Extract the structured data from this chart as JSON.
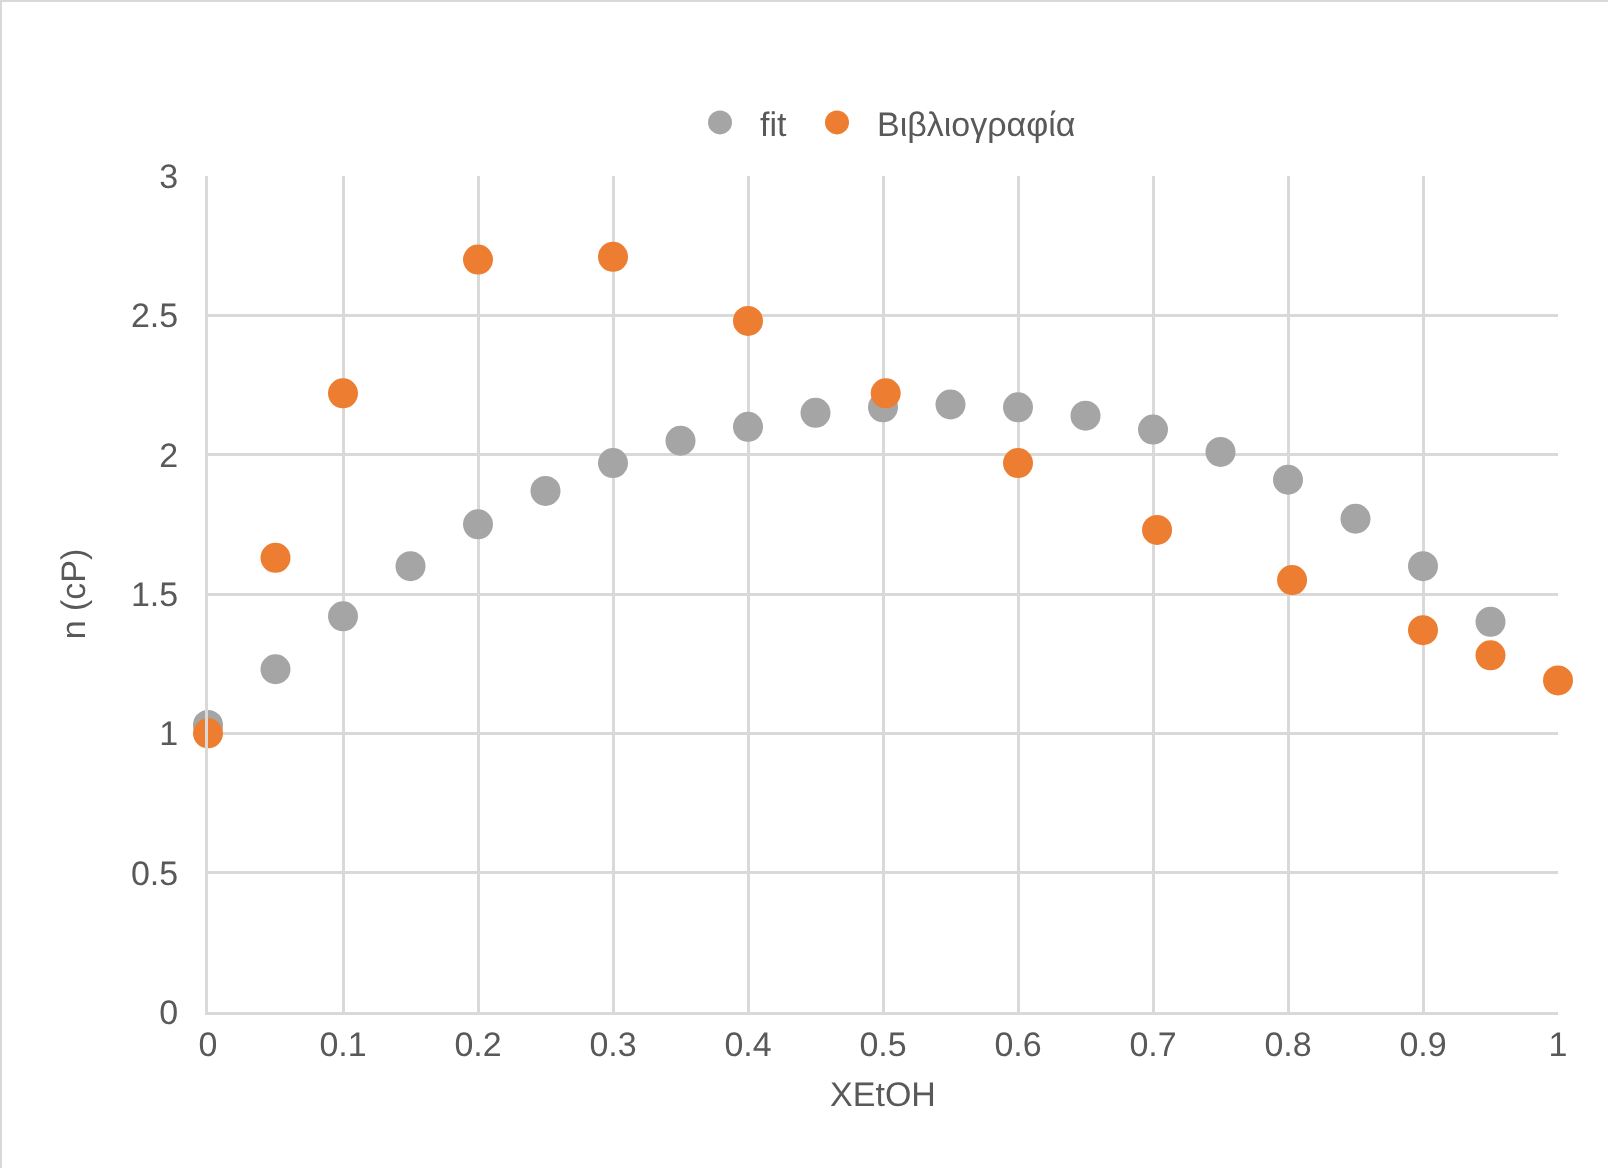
{
  "chart_data": {
    "type": "scatter",
    "xlabel": "XEtOH",
    "ylabel": "n (cP)",
    "xlim": [
      0,
      1
    ],
    "xticks": [
      0,
      0.1,
      0.2,
      0.3,
      0.4,
      0.5,
      0.6,
      0.7,
      0.8,
      0.9,
      1
    ],
    "ylim": [
      0,
      3
    ],
    "yticks": [
      0,
      0.5,
      1,
      1.5,
      2,
      2.5,
      3
    ],
    "grid": true,
    "legend": "top",
    "marker": "circle",
    "series": [
      {
        "name": "fit",
        "color": "#a5a5a5",
        "x": [
          0,
          0.05,
          0.1,
          0.15,
          0.2,
          0.25,
          0.3,
          0.35,
          0.4,
          0.45,
          0.5,
          0.55,
          0.6,
          0.65,
          0.7,
          0.75,
          0.8,
          0.85,
          0.9,
          0.95
        ],
        "values": [
          1.03,
          1.23,
          1.42,
          1.6,
          1.75,
          1.87,
          1.97,
          2.05,
          2.1,
          2.15,
          2.17,
          2.18,
          2.17,
          2.14,
          2.09,
          2.01,
          1.91,
          1.77,
          1.6,
          1.4
        ]
      },
      {
        "name": "Βιβλιογραφία",
        "color": "#ed7d31",
        "x": [
          0,
          0.05,
          0.1,
          0.2,
          0.3,
          0.4,
          0.502,
          0.6,
          0.703,
          0.803,
          0.9,
          0.95,
          1
        ],
        "values": [
          1.0,
          1.63,
          2.22,
          2.7,
          2.71,
          2.48,
          2.22,
          1.97,
          1.73,
          1.55,
          1.37,
          1.28,
          1.19
        ]
      }
    ]
  }
}
